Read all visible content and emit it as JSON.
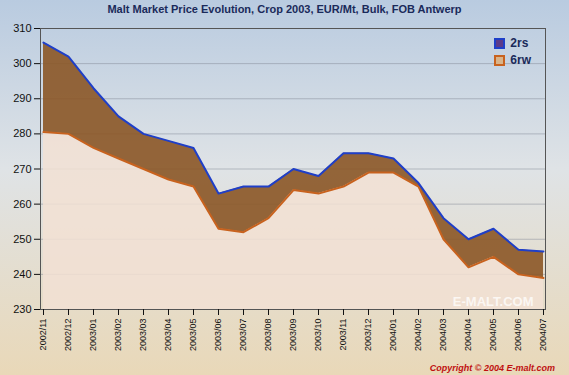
{
  "chart_data": {
    "type": "area",
    "title": "Malt Market Price Evolution, Crop 2003, EUR/Mt, Bulk, FOB Antwerp",
    "categories": [
      "2002/11",
      "2002/12",
      "2003/01",
      "2003/02",
      "2003/03",
      "2003/04",
      "2003/05",
      "2003/06",
      "2003/07",
      "2003/08",
      "2003/09",
      "2003/10",
      "2003/11",
      "2003/12",
      "2004/01",
      "2004/02",
      "2004/03",
      "2004/04",
      "2004/05",
      "2004/06",
      "2004/07"
    ],
    "series": [
      {
        "name": "2rs",
        "color": "#1f3fc8",
        "values": [
          306,
          302,
          293,
          285,
          280,
          278,
          276,
          263,
          265,
          265,
          270,
          268,
          274.5,
          274.5,
          273,
          266,
          256,
          250,
          253,
          247,
          246.5
        ]
      },
      {
        "name": "6rw",
        "color": "#c8621e",
        "values": [
          280.5,
          280,
          276,
          273,
          270,
          267,
          265,
          253,
          252,
          256,
          264,
          263,
          265,
          269,
          269,
          265,
          250,
          242,
          245,
          240,
          239
        ]
      }
    ],
    "ylim": [
      230,
      310
    ],
    "yticks": [
      230,
      240,
      250,
      260,
      270,
      280,
      290,
      300,
      310
    ],
    "grid": true,
    "legend": "top-right",
    "annotations": [
      "E-MALT.COM",
      "Copyright © 2004 E-malt.com"
    ]
  }
}
